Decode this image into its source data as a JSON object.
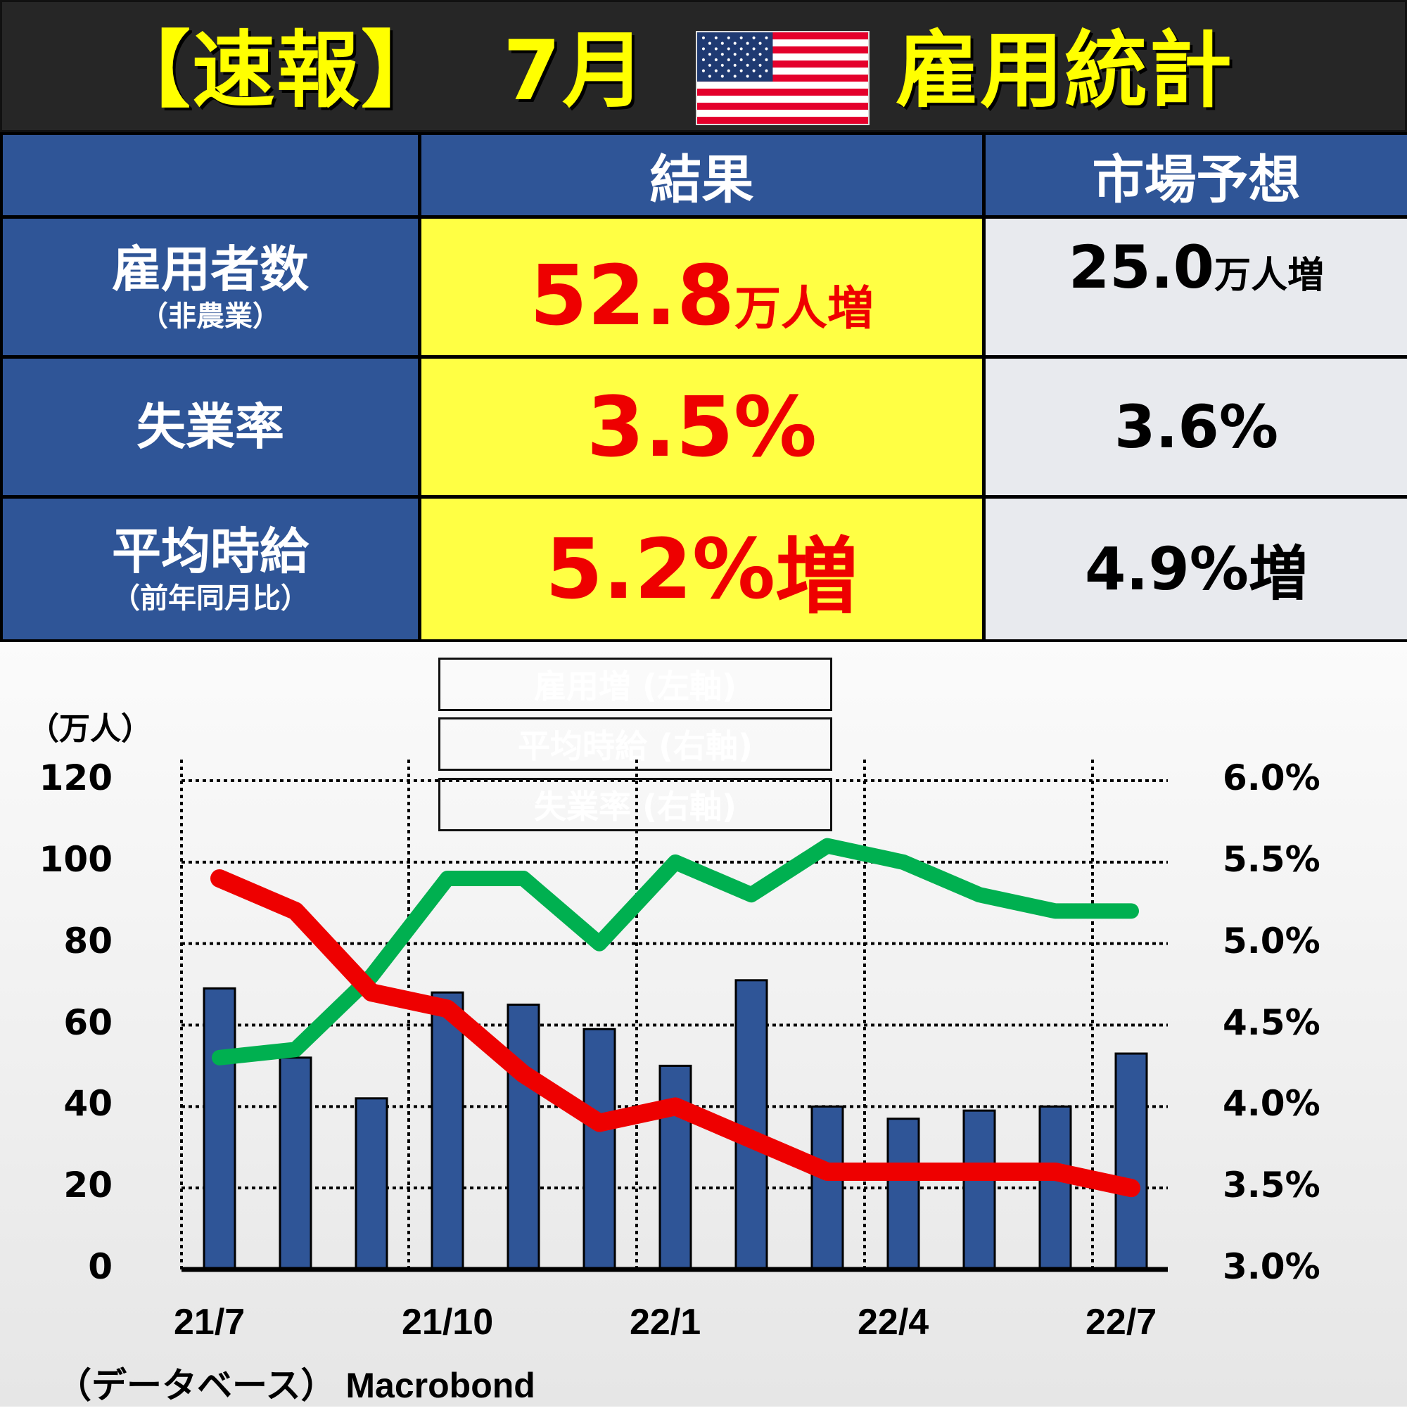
{
  "header": {
    "bracket_title": "【速報】",
    "month": "7月",
    "title": "雇用統計",
    "flag_icon": "us-flag"
  },
  "table": {
    "columns": [
      "",
      "結果",
      "市場予想"
    ],
    "rows": [
      {
        "label": "雇用者数",
        "sub": "（非農業）",
        "result_value": "52.8",
        "result_unit": "万人増",
        "forecast_value": "25.0",
        "forecast_unit": "万人増"
      },
      {
        "label": "失業率",
        "sub": "",
        "result_value": "3.5%",
        "result_unit": "",
        "forecast_value": "3.6%",
        "forecast_unit": ""
      },
      {
        "label": "平均時給",
        "sub": "（前年同月比）",
        "result_value": "5.2%",
        "result_unit": "増",
        "forecast_value": "4.9%",
        "forecast_unit": "増"
      }
    ],
    "colors": {
      "header_bg": "#2f5597",
      "result_bg": "#ffff44",
      "result_text": "#ee0000",
      "forecast_bg": "#e8eaee"
    }
  },
  "legend": [
    {
      "label": "雇用増 (左軸)",
      "color": "#2f5597"
    },
    {
      "label": "平均時給 (右軸)",
      "color": "#00b050"
    },
    {
      "label": "失業率 (右軸)",
      "color": "#ee0000"
    }
  ],
  "footer": "（データベース） Macrobond",
  "chart_data": {
    "type": "bar",
    "title": "",
    "categories": [
      "21/7",
      "21/8",
      "21/9",
      "21/10",
      "21/11",
      "21/12",
      "22/1",
      "22/2",
      "22/3",
      "22/4",
      "22/5",
      "22/6",
      "22/7"
    ],
    "x_tick_labels": [
      "21/7",
      "21/10",
      "22/1",
      "22/4",
      "22/7"
    ],
    "left_axis": {
      "label": "（万人）",
      "ticks": [
        "120",
        "100",
        "80",
        "60",
        "40",
        "20",
        "0"
      ],
      "range": [
        0,
        120
      ]
    },
    "right_axis": {
      "ticks": [
        "6.0%",
        "5.5%",
        "5.0%",
        "4.5%",
        "4.0%",
        "3.5%",
        "3.0%"
      ],
      "range": [
        3.0,
        6.0
      ]
    },
    "grid": "dotted",
    "series": [
      {
        "name": "雇用増 (左軸)",
        "type": "bar",
        "axis": "left",
        "color": "#2f5597",
        "values": [
          69,
          52,
          42,
          68,
          65,
          59,
          50,
          71,
          40,
          37,
          39,
          40,
          53
        ]
      },
      {
        "name": "平均時給 (右軸)",
        "type": "line",
        "axis": "right",
        "color": "#00b050",
        "values": [
          4.3,
          4.35,
          4.8,
          5.4,
          5.4,
          5.0,
          5.5,
          5.3,
          5.6,
          5.5,
          5.3,
          5.2,
          5.2
        ]
      },
      {
        "name": "失業率 (右軸)",
        "type": "line",
        "axis": "right",
        "color": "#ee0000",
        "values": [
          5.4,
          5.2,
          4.7,
          4.6,
          4.2,
          3.9,
          4.0,
          3.8,
          3.6,
          3.6,
          3.6,
          3.6,
          3.5
        ]
      }
    ]
  }
}
